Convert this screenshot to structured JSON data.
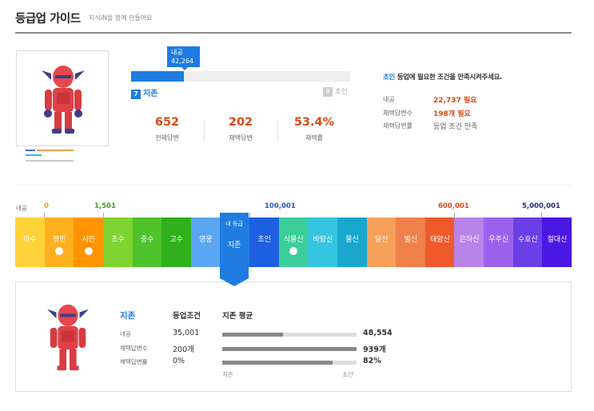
{
  "header": {
    "title": "등급업 가이드",
    "subtitle": "지식iN을 함께 만들어요"
  },
  "profile": {
    "current_level_num": "7",
    "current_level": "지존",
    "next_level_num": "8",
    "next_level": "초인",
    "bubble_label": "내공",
    "bubble_value": "42,264",
    "progress_fraction": 0.24,
    "stats": [
      {
        "value": "652",
        "label": "전체답변"
      },
      {
        "value": "202",
        "label": "채택답변"
      },
      {
        "value": "53.4%",
        "label": "채택률"
      }
    ]
  },
  "requirements": {
    "head_level": "초인",
    "head_rest": " 등업에 필요한 조건을 만족시켜주세요.",
    "rows": [
      {
        "key": "내공",
        "value": "22,737 필요",
        "highlight": true
      },
      {
        "key": "채택답변수",
        "value": "198개 필요",
        "highlight": true
      },
      {
        "key": "채택답변률",
        "value": "등업 조건 만족",
        "highlight": false
      }
    ]
  },
  "levels_strip": {
    "axis_label": "내공",
    "thresholds": [
      {
        "text": "0",
        "color": "#f6a400"
      },
      {
        "text": "1,501",
        "color": "#3da21c"
      },
      {
        "text": "100,001",
        "color": "#1e5ad8"
      },
      {
        "text": "600,001",
        "color": "#e24b1d"
      },
      {
        "text": "5,000,001",
        "color": "#2a2a7a"
      }
    ],
    "current_flag_top": "내 등급",
    "current_flag_name": "지존",
    "levels": [
      {
        "name": "하수",
        "color": "#ffd23a",
        "coin": false
      },
      {
        "name": "평민",
        "color": "#ffb01f",
        "coin": true
      },
      {
        "name": "시민",
        "color": "#ff9400",
        "coin": true
      },
      {
        "name": "초수",
        "color": "#7fd431",
        "coin": false
      },
      {
        "name": "중수",
        "color": "#4fc32c",
        "coin": false
      },
      {
        "name": "고수",
        "color": "#2fb01c",
        "coin": false
      },
      {
        "name": "영웅",
        "color": "#5aa6f2",
        "coin": false
      },
      {
        "name": "지존",
        "color": "#1e7ce0",
        "coin": false
      },
      {
        "name": "초인",
        "color": "#1d5fe0",
        "coin": false
      },
      {
        "name": "식물신",
        "color": "#3bce9a",
        "coin": true
      },
      {
        "name": "바람신",
        "color": "#35c4df",
        "coin": false
      },
      {
        "name": "물신",
        "color": "#1aa7ce",
        "coin": false
      },
      {
        "name": "달신",
        "color": "#f7a05a",
        "coin": false
      },
      {
        "name": "별신",
        "color": "#f0804a",
        "coin": false
      },
      {
        "name": "태양신",
        "color": "#ee5a2c",
        "coin": false
      },
      {
        "name": "은하신",
        "color": "#b984ea",
        "coin": false
      },
      {
        "name": "우주신",
        "color": "#9b62ee",
        "coin": false
      },
      {
        "name": "수호신",
        "color": "#6a3fe6",
        "coin": false
      },
      {
        "name": "절대신",
        "color": "#4a17e2",
        "coin": false
      }
    ]
  },
  "detail": {
    "level_name": "지존",
    "col_condition": "등업조건",
    "col_average": "지존 평균",
    "rows": [
      {
        "key": "내공",
        "condition": "35,001",
        "average": "48,554",
        "fill": 0.45
      },
      {
        "key": "채택답변수",
        "condition": "200개",
        "average": "939개",
        "fill": 1.0
      },
      {
        "key": "채택답변률",
        "condition": "0%",
        "average": "82%",
        "fill": 0.82
      }
    ],
    "foot_left": "지존",
    "foot_right": "초인"
  },
  "colors": {
    "accent": "#1e7ce0",
    "warn": "#d64a19"
  }
}
